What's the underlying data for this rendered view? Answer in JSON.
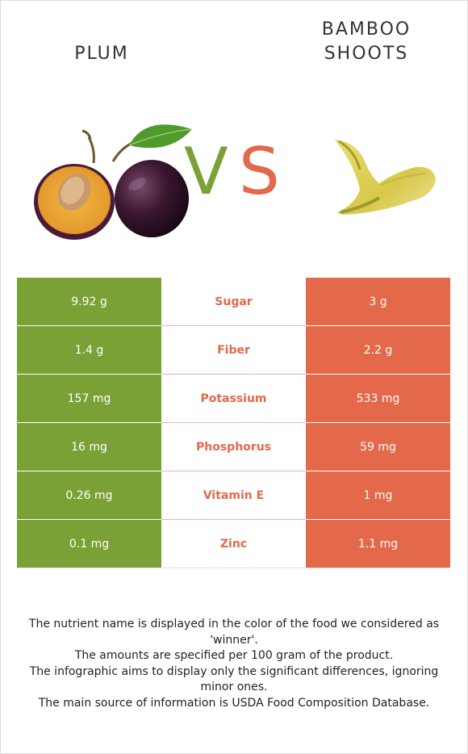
{
  "header": {
    "left_food": "PLUM",
    "right_food_line1": "BAMBOO",
    "right_food_line2": "SHOOTS",
    "vs_v": "V",
    "vs_s": "S"
  },
  "colors": {
    "left_accent": "#7aa135",
    "right_accent": "#e3694a"
  },
  "rows": [
    {
      "left": "9.92 g",
      "nutrient": "Sugar",
      "right": "3 g"
    },
    {
      "left": "1.4 g",
      "nutrient": "Fiber",
      "right": "2.2 g"
    },
    {
      "left": "157 mg",
      "nutrient": "Potassium",
      "right": "533 mg"
    },
    {
      "left": "16 mg",
      "nutrient": "Phosphorus",
      "right": "59 mg"
    },
    {
      "left": "0.26 mg",
      "nutrient": "Vitamin E",
      "right": "1 mg"
    },
    {
      "left": "0.1 mg",
      "nutrient": "Zinc",
      "right": "1.1 mg"
    }
  ],
  "footer": {
    "line1": "The nutrient name is displayed in the color of the food we considered as 'winner'.",
    "line2": "The amounts are specified per 100 gram of the product.",
    "line3": "The infographic aims to display only the significant differences, ignoring minor ones.",
    "line4": "The main source of information is USDA Food Composition Database."
  },
  "images": {
    "left": "plum-image",
    "right": "bamboo-shoot-image"
  }
}
